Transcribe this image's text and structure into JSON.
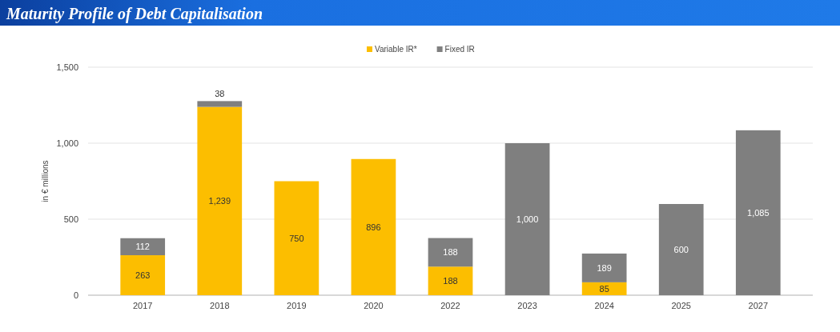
{
  "chart_data": {
    "type": "bar",
    "title": "Maturity Profile of Debt Capitalisation",
    "ylabel": "in € millions",
    "categories": [
      "2017",
      "2018",
      "2019",
      "2020",
      "2022",
      "2023",
      "2024",
      "2025",
      "2027"
    ],
    "stacked": true,
    "series": [
      {
        "name": "Variable IR*",
        "color": "#fcbe00",
        "values": [
          263,
          1239,
          750,
          896,
          188,
          null,
          85,
          null,
          null
        ],
        "value_labels": [
          "263",
          "1,239",
          "750",
          "896",
          "188",
          null,
          "85",
          null,
          null
        ]
      },
      {
        "name": "Fixed IR",
        "color": "#7f7f7f",
        "values": [
          112,
          38,
          null,
          null,
          188,
          1000,
          189,
          600,
          1085
        ],
        "value_labels": [
          "112",
          "38",
          null,
          null,
          "188",
          "1,000",
          "189",
          "600",
          "1,085"
        ]
      }
    ],
    "ylim": [
      0,
      1500
    ],
    "yticks": [
      {
        "value": 0,
        "label": "0"
      },
      {
        "value": 500,
        "label": "500"
      },
      {
        "value": 1000,
        "label": "1,000"
      },
      {
        "value": 1500,
        "label": "1,500"
      }
    ],
    "grid": "y",
    "legend": "top"
  }
}
